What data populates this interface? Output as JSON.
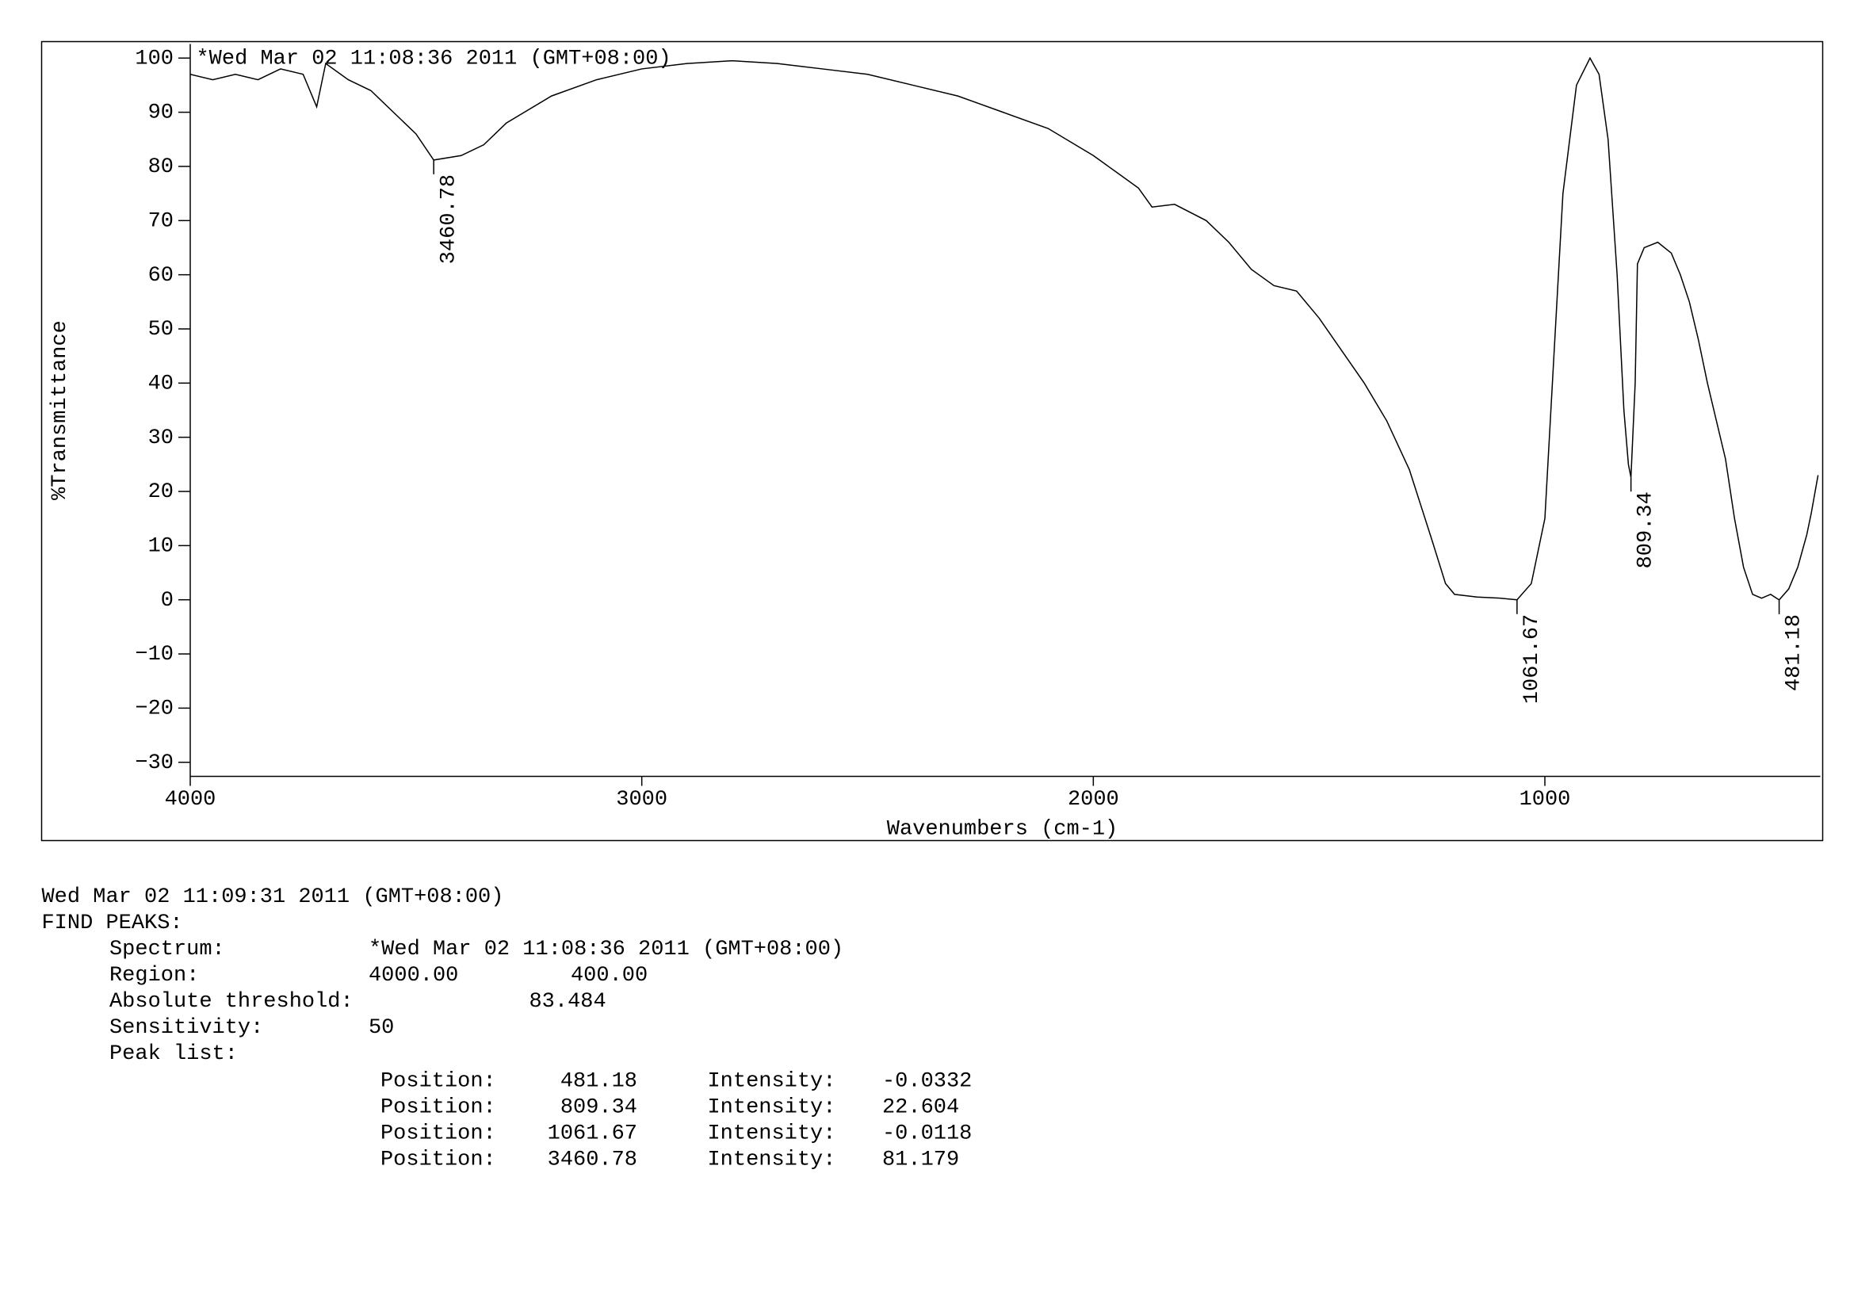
{
  "chart_data": {
    "type": "line",
    "title": "*Wed Mar 02 11:08:36 2011 (GMT+08:00)",
    "x_label": "Wavenumbers (cm-1)",
    "y_label": "%Transmittance",
    "color": "#000000",
    "xlim": [
      4000,
      390
    ],
    "ylim": [
      -32.6,
      102.6
    ],
    "xticks": [
      4000,
      3000,
      2000,
      1000
    ],
    "yticks": [
      {
        "value": -30,
        "label": "−30"
      },
      {
        "value": -20,
        "label": "−20"
      },
      {
        "value": -10,
        "label": "−10"
      },
      0,
      10,
      20,
      30,
      40,
      50,
      60,
      70,
      80,
      90,
      100
    ],
    "x": [
      4000,
      3950,
      3900,
      3850,
      3800,
      3750,
      3720,
      3700,
      3650,
      3600,
      3550,
      3500,
      3460.78,
      3400,
      3350,
      3300,
      3200,
      3100,
      3000,
      2900,
      2800,
      2700,
      2600,
      2500,
      2400,
      2300,
      2200,
      2100,
      2000,
      1950,
      1900,
      1870,
      1820,
      1750,
      1700,
      1650,
      1600,
      1550,
      1500,
      1450,
      1400,
      1350,
      1300,
      1250,
      1220,
      1200,
      1150,
      1100,
      1061.67,
      1030,
      1000,
      980,
      960,
      930,
      900,
      880,
      860,
      840,
      825,
      815,
      809.34,
      800,
      795,
      780,
      750,
      720,
      700,
      680,
      660,
      640,
      620,
      600,
      580,
      560,
      540,
      520,
      500,
      481.18,
      460,
      440,
      420,
      410,
      395
    ],
    "values": [
      97,
      96,
      97,
      96,
      98,
      97,
      91,
      99,
      96,
      94,
      90,
      86,
      81.179,
      82,
      84,
      88,
      93,
      96,
      98,
      99,
      99.5,
      99,
      98,
      97,
      95,
      93,
      90,
      87,
      82,
      79,
      76,
      72.5,
      73,
      70,
      66,
      61,
      58,
      57,
      52,
      46,
      40,
      33,
      24,
      11,
      3,
      1,
      0.5,
      0.3,
      -0.0118,
      3,
      15,
      45,
      75,
      95,
      100,
      97,
      85,
      60,
      35,
      25,
      22.604,
      40,
      62,
      65,
      66,
      64,
      60,
      55,
      48,
      40,
      33,
      26,
      15,
      6,
      1,
      0.3,
      1,
      -0.0332,
      2,
      6,
      12,
      16,
      23
    ],
    "peaks": [
      {
        "x": 3460.78,
        "y": 81.179
      },
      {
        "x": 1061.67,
        "y": -0.0118
      },
      {
        "x": 809.34,
        "y": 22.604
      },
      {
        "x": 481.18,
        "y": -0.0332
      }
    ]
  },
  "report": {
    "timestamp": "Wed Mar 02 11:09:31 2011 (GMT+08:00)",
    "heading": "FIND PEAKS:",
    "spectrum_label": "Spectrum:",
    "spectrum_value": "*Wed Mar 02 11:08:36 2011 (GMT+08:00)",
    "region_label": "Region:",
    "region_values": [
      "4000.00",
      "400.00"
    ],
    "threshold_label": "Absolute threshold:",
    "threshold_value": "83.484",
    "sensitivity_label": "Sensitivity:",
    "sensitivity_value": "50",
    "peak_list_label": "Peak list:",
    "peak_rows": [
      [
        "Position:",
        "481.18",
        "Intensity:",
        "-0.0332"
      ],
      [
        "Position:",
        "809.34",
        "Intensity:",
        "22.604"
      ],
      [
        "Position:",
        "1061.67",
        "Intensity:",
        "-0.0118"
      ],
      [
        "Position:",
        "3460.78",
        "Intensity:",
        "81.179"
      ]
    ]
  }
}
